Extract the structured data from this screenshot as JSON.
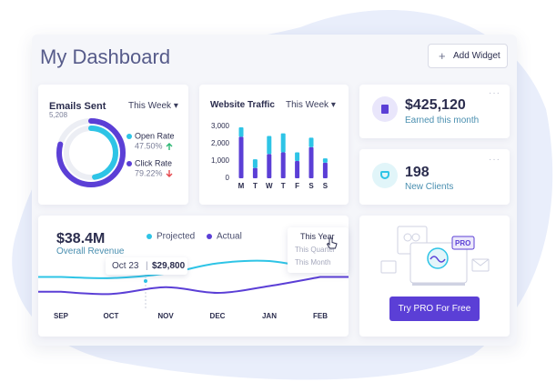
{
  "header": {
    "title": "My Dashboard",
    "button": "Add Widget"
  },
  "emails": {
    "title": "Emails Sent",
    "total": "5,208",
    "period": "This Week",
    "chart": {
      "type": "donut",
      "categories": [
        "Open Rate",
        "Click Rate"
      ],
      "values": [
        47.5,
        79.22
      ],
      "value_labels": [
        "47.50%",
        "79.22%"
      ],
      "colors": [
        "#2ec4e6",
        "#5b3fd6"
      ]
    }
  },
  "traffic": {
    "title": "Website Traffic",
    "period": "This Week",
    "chart": {
      "type": "bar",
      "stacked": true,
      "categories": [
        "M",
        "T",
        "W",
        "T",
        "F",
        "S",
        "S"
      ],
      "series": [
        {
          "color": "#5b3fd6",
          "values": [
            2400,
            600,
            1400,
            1500,
            1000,
            1800,
            900
          ]
        },
        {
          "color": "#2ec4e6",
          "values": [
            550,
            500,
            1050,
            1100,
            500,
            550,
            250
          ]
        }
      ],
      "ylim": [
        0,
        3000
      ],
      "yticks": [
        0,
        {
          "value": 1000,
          "label": "1,000"
        },
        {
          "value": 2000,
          "label": "2,000"
        },
        {
          "value": 3000,
          "label": "3,000"
        }
      ]
    }
  },
  "earnings": {
    "value": "$425,120",
    "label": "Earned this month"
  },
  "clients": {
    "value": 198,
    "label": "New Clients"
  },
  "revenue": {
    "value": "$38.4M",
    "label": "Overall Revenue",
    "period_options": [
      "This Year",
      "This Quarter",
      "This Month"
    ],
    "chart": {
      "type": "line",
      "categories": [
        "SEP",
        "OCT",
        "NOV",
        "DEC",
        "JAN",
        "FEB"
      ],
      "series": [
        {
          "name": "Projected",
          "color": "#2ec4e6",
          "values": [
            30000,
            29000,
            33000,
            42000,
            44000,
            36000
          ]
        },
        {
          "name": "Actual",
          "color": "#5b3fd6",
          "values": [
            17000,
            15000,
            21000,
            16000,
            22000,
            30000
          ]
        }
      ],
      "ylim": [
        0,
        60000
      ],
      "annotation": {
        "date": "Oct 23",
        "value": "$29,800"
      }
    }
  },
  "pro": {
    "badge": "PRO",
    "button": "Try PRO For Free"
  }
}
